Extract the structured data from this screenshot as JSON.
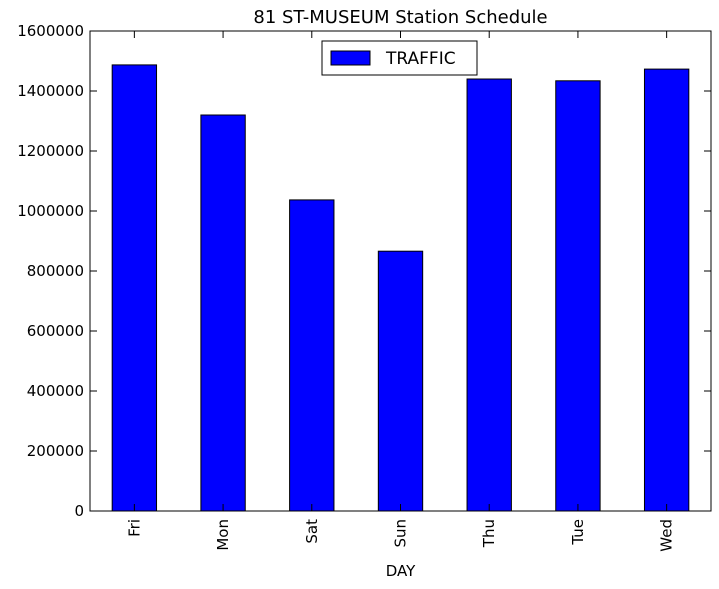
{
  "chart_data": {
    "type": "bar",
    "title": "81 ST-MUSEUM Station Schedule",
    "xlabel": "DAY",
    "ylabel": "",
    "categories": [
      "Fri",
      "Mon",
      "Sat",
      "Sun",
      "Thu",
      "Tue",
      "Wed"
    ],
    "series": [
      {
        "name": "TRAFFIC",
        "values": [
          1487000,
          1320000,
          1037000,
          866000,
          1440000,
          1434000,
          1473000
        ],
        "color": "#0000ff"
      }
    ],
    "ylim": [
      0,
      1600000
    ],
    "yticks": [
      0,
      200000,
      400000,
      600000,
      800000,
      1000000,
      1200000,
      1400000,
      1600000
    ],
    "ytick_labels": [
      "0",
      "200000",
      "400000",
      "600000",
      "800000",
      "1000000",
      "1200000",
      "1400000",
      "1600000"
    ],
    "grid": false,
    "legend_position": "top-center"
  }
}
